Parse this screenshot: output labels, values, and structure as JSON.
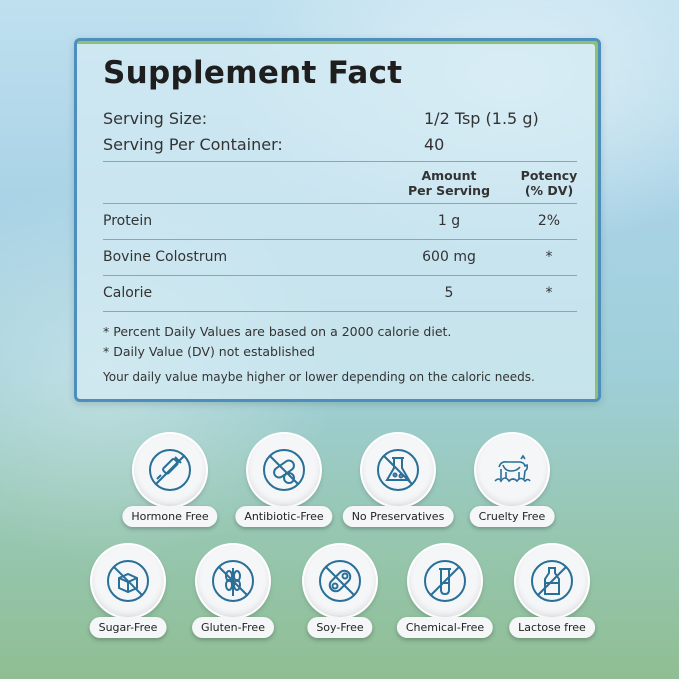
{
  "panel": {
    "title": "Supplement Fact",
    "serving_size_label": "Serving Size:",
    "serving_size_value": "1/2 Tsp (1.5 g)",
    "servings_label": "Serving Per Container:",
    "servings_value": "40",
    "columns": {
      "amount_line1": "Amount",
      "amount_line2": "Per Serving",
      "potency_line1": "Potency",
      "potency_line2": "(% DV)"
    },
    "rows": [
      {
        "name": "Protein",
        "amount": "1 g",
        "potency": "2%"
      },
      {
        "name": "Bovine Colostrum",
        "amount": "600 mg",
        "potency": "*"
      },
      {
        "name": "Calorie",
        "amount": "5",
        "potency": "*"
      }
    ],
    "notes": [
      "* Percent Daily Values are based on a 2000 calorie diet.",
      "* Daily Value (DV) not established"
    ],
    "footer_note": "Your daily value maybe higher or lower depending on the caloric needs."
  },
  "badges": [
    {
      "label": "Hormone Free",
      "icon": "hormone-free-icon"
    },
    {
      "label": "Antibiotic-Free",
      "icon": "antibiotic-free-icon"
    },
    {
      "label": "No Preservatives",
      "icon": "no-preservatives-icon"
    },
    {
      "label": "Cruelty Free",
      "icon": "cruelty-free-icon"
    },
    {
      "label": "Sugar-Free",
      "icon": "sugar-free-icon"
    },
    {
      "label": "Gluten-Free",
      "icon": "gluten-free-icon"
    },
    {
      "label": "Soy-Free",
      "icon": "soy-free-icon"
    },
    {
      "label": "Chemical-Free",
      "icon": "chemical-free-icon"
    },
    {
      "label": "Lactose free",
      "icon": "lactose-free-icon"
    }
  ],
  "colors": {
    "icon_blue": "#2a6f97",
    "panel_border": "#4c8fbd",
    "panel_border_accent": "#8fbf72"
  }
}
